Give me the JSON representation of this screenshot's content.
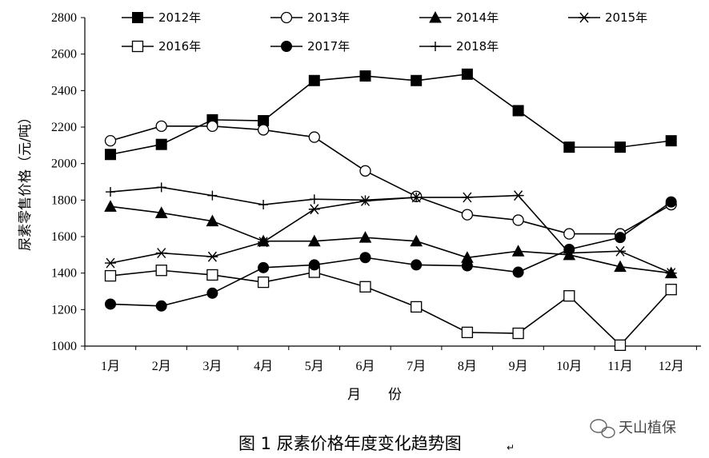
{
  "chart_data": {
    "type": "line",
    "categories": [
      "1月",
      "2月",
      "3月",
      "4月",
      "5月",
      "6月",
      "7月",
      "8月",
      "9月",
      "10月",
      "11月",
      "12月"
    ],
    "ylabel": "尿素零售价格（元/吨）",
    "xlabel": "月　　份",
    "ylim": [
      1000,
      2800
    ],
    "yticks": [
      1000,
      1200,
      1400,
      1600,
      1800,
      2000,
      2200,
      2400,
      2600,
      2800
    ],
    "grid": false,
    "legend_position": "top",
    "series": [
      {
        "name": "2012年",
        "marker": "filled-square",
        "values": [
          2050,
          2105,
          2240,
          2235,
          2455,
          2480,
          2455,
          2490,
          2290,
          2090,
          2090,
          2125
        ]
      },
      {
        "name": "2013年",
        "marker": "open-circle",
        "values": [
          2125,
          2205,
          2205,
          2185,
          2145,
          1960,
          1820,
          1720,
          1690,
          1615,
          1615,
          1775
        ]
      },
      {
        "name": "2014年",
        "marker": "filled-triangle",
        "values": [
          1765,
          1730,
          1685,
          1575,
          1575,
          1595,
          1575,
          1485,
          1520,
          1500,
          1435,
          1400
        ]
      },
      {
        "name": "2015年",
        "marker": "asterisk",
        "values": [
          1455,
          1510,
          1490,
          1570,
          1750,
          1795,
          1815,
          1815,
          1825,
          1510,
          1520,
          1400
        ]
      },
      {
        "name": "2016年",
        "marker": "open-square",
        "values": [
          1385,
          1415,
          1390,
          1350,
          1405,
          1325,
          1215,
          1075,
          1070,
          1275,
          1005,
          1310
        ]
      },
      {
        "name": "2017年",
        "marker": "filled-circle",
        "values": [
          1230,
          1220,
          1290,
          1430,
          1445,
          1485,
          1445,
          1440,
          1405,
          1530,
          1595,
          1790
        ]
      },
      {
        "name": "2018年",
        "marker": "plus",
        "values": [
          1845,
          1870,
          1825,
          1775,
          1805,
          1800,
          1815,
          null,
          null,
          null,
          null,
          null
        ]
      }
    ]
  },
  "caption": "图 1  尿素价格年度变化趋势图",
  "caption_mark": "↵",
  "watermark": "天山植保"
}
